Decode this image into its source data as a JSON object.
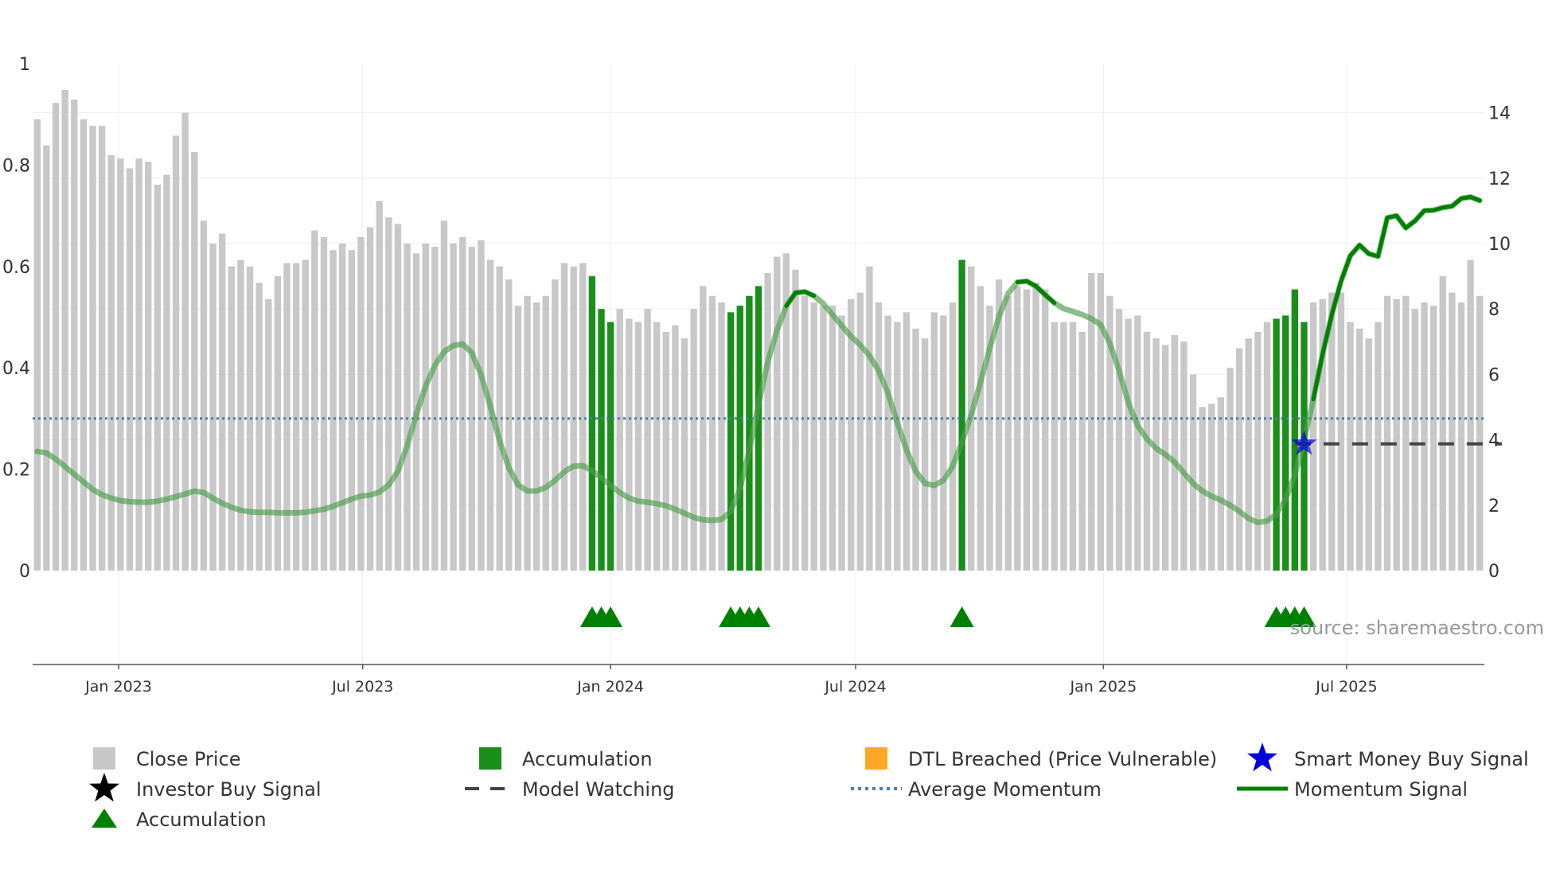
{
  "colors": {
    "close_price": "#c8c8c8",
    "accumulation": "#1a8f1a",
    "dtl_breached": "#ffa726",
    "momentum_main": "#008000",
    "momentum_faded": "#4a9c4a",
    "average_momentum": "#4a7fa6",
    "model_watching": "#444444",
    "smart_money": "#0000dd",
    "investor_buy": "#000000",
    "grid": "#eeeeee",
    "axis": "#555555"
  },
  "chart_data": {
    "type": "bar",
    "title": "",
    "source_label": "source: sharemaestro.com",
    "x_ticks": [
      "Jan 2023",
      "Jul 2023",
      "Jan 2024",
      "Jul 2024",
      "Jan 2025",
      "Jul 2025"
    ],
    "x_tick_positions": [
      8.8,
      35.2,
      62.0,
      88.5,
      115.3,
      141.6
    ],
    "left_axis": {
      "ticks": [
        "1",
        "0.8",
        "0.6",
        "0.4",
        "0.2",
        "0"
      ],
      "tick_values": [
        1,
        0.8,
        0.6,
        0.4,
        0.2,
        0
      ],
      "range": [
        0,
        1
      ]
    },
    "right_axis": {
      "ticks": [
        "14",
        "12",
        "10",
        "8",
        "6",
        "4",
        "2",
        "0"
      ],
      "tick_values": [
        14,
        12,
        10,
        8,
        6,
        4,
        2,
        0
      ],
      "range": [
        0,
        15.5
      ]
    },
    "close_price": [
      13.8,
      13.0,
      14.3,
      14.7,
      14.4,
      13.8,
      13.6,
      13.6,
      12.7,
      12.6,
      12.3,
      12.6,
      12.5,
      11.8,
      12.1,
      13.3,
      14.0,
      12.8,
      10.7,
      10.0,
      10.3,
      9.3,
      9.5,
      9.3,
      8.8,
      8.3,
      9.0,
      9.4,
      9.4,
      9.5,
      10.4,
      10.2,
      9.8,
      10.0,
      9.8,
      10.2,
      10.5,
      11.3,
      10.8,
      10.6,
      10.0,
      9.7,
      10.0,
      9.9,
      10.7,
      10.0,
      10.2,
      9.9,
      10.1,
      9.5,
      9.3,
      8.9,
      8.1,
      8.4,
      8.2,
      8.4,
      8.9,
      9.4,
      9.3,
      9.4,
      9.0,
      8.0,
      7.6,
      8.0,
      7.7,
      7.6,
      8.0,
      7.6,
      7.3,
      7.5,
      7.1,
      8.0,
      8.7,
      8.4,
      8.2,
      7.9,
      8.1,
      8.4,
      8.7,
      9.1,
      9.6,
      9.7,
      9.2,
      8.4,
      8.2,
      8.1,
      8.1,
      7.8,
      8.3,
      8.5,
      9.3,
      8.2,
      7.8,
      7.6,
      7.9,
      7.4,
      7.1,
      7.9,
      7.8,
      8.2,
      9.5,
      9.3,
      8.7,
      8.1,
      8.9,
      8.4,
      8.7,
      8.6,
      8.8,
      8.6,
      7.6,
      7.6,
      7.6,
      7.3,
      9.1,
      9.1,
      8.4,
      8.0,
      7.7,
      7.8,
      7.3,
      7.1,
      6.9,
      7.2,
      7.0,
      6.0,
      5.0,
      5.1,
      5.3,
      6.2,
      6.8,
      7.1,
      7.3,
      7.6,
      7.7,
      7.8,
      8.6,
      7.6,
      8.2,
      8.3,
      8.5,
      8.5,
      7.6,
      7.4,
      7.1,
      7.6,
      8.4,
      8.3,
      8.4,
      8.0,
      8.2,
      8.1,
      9.0,
      8.5,
      8.2,
      9.5,
      8.4
    ],
    "accumulation_indices": [
      60,
      61,
      62,
      75,
      76,
      77,
      78,
      100,
      134,
      135,
      136,
      137
    ],
    "accumulation_markers": [
      60,
      61,
      62,
      75,
      76,
      77,
      78,
      100,
      134,
      135,
      136,
      137
    ],
    "momentum_signal": [
      0.235,
      0.232,
      0.22,
      0.205,
      0.19,
      0.175,
      0.16,
      0.15,
      0.143,
      0.138,
      0.136,
      0.135,
      0.135,
      0.137,
      0.141,
      0.146,
      0.151,
      0.157,
      0.154,
      0.143,
      0.133,
      0.125,
      0.119,
      0.116,
      0.115,
      0.115,
      0.114,
      0.114,
      0.114,
      0.115,
      0.118,
      0.121,
      0.127,
      0.134,
      0.141,
      0.147,
      0.149,
      0.155,
      0.169,
      0.196,
      0.246,
      0.308,
      0.364,
      0.405,
      0.432,
      0.444,
      0.447,
      0.43,
      0.386,
      0.324,
      0.256,
      0.203,
      0.169,
      0.157,
      0.157,
      0.164,
      0.178,
      0.195,
      0.206,
      0.207,
      0.197,
      0.183,
      0.168,
      0.154,
      0.143,
      0.137,
      0.135,
      0.132,
      0.128,
      0.121,
      0.113,
      0.105,
      0.1,
      0.099,
      0.101,
      0.117,
      0.162,
      0.237,
      0.328,
      0.412,
      0.474,
      0.522,
      0.548,
      0.55,
      0.542,
      0.527,
      0.505,
      0.483,
      0.462,
      0.445,
      0.424,
      0.394,
      0.35,
      0.292,
      0.238,
      0.196,
      0.172,
      0.168,
      0.178,
      0.206,
      0.253,
      0.307,
      0.371,
      0.438,
      0.501,
      0.547,
      0.569,
      0.571,
      0.561,
      0.544,
      0.528,
      0.517,
      0.511,
      0.505,
      0.497,
      0.485,
      0.448,
      0.394,
      0.331,
      0.286,
      0.26,
      0.241,
      0.229,
      0.214,
      0.193,
      0.172,
      0.157,
      0.147,
      0.139,
      0.129,
      0.117,
      0.103,
      0.095,
      0.098,
      0.111,
      0.141,
      0.188,
      0.257,
      0.338,
      0.427,
      0.505,
      0.571,
      0.621,
      0.642,
      0.625,
      0.62,
      0.696,
      0.7,
      0.676,
      0.69,
      0.71,
      0.711,
      0.716,
      0.719,
      0.734,
      0.737,
      0.73
    ],
    "momentum_highlight_ranges": [
      [
        81,
        84
      ],
      [
        106,
        110
      ],
      [
        138,
        158
      ]
    ],
    "average_momentum": 0.3,
    "model_watching": {
      "from_index": 136,
      "to_index": 158,
      "value": 0.25
    },
    "smart_money_buy": {
      "index": 137,
      "value": 0.25
    },
    "legend": [
      {
        "label": "Close Price",
        "symbol": "square",
        "color_key": "close_price"
      },
      {
        "label": "Accumulation",
        "symbol": "square",
        "color_key": "accumulation"
      },
      {
        "label": "DTL Breached (Price Vulnerable)",
        "symbol": "square",
        "color_key": "dtl_breached"
      },
      {
        "label": "Smart Money Buy Signal",
        "symbol": "star",
        "color_key": "smart_money"
      },
      {
        "label": "Investor Buy Signal",
        "symbol": "star",
        "color_key": "investor_buy"
      },
      {
        "label": "Model Watching",
        "symbol": "dash",
        "color_key": "model_watching"
      },
      {
        "label": "Average Momentum",
        "symbol": "dot",
        "color_key": "average_momentum"
      },
      {
        "label": "Momentum Signal",
        "symbol": "line",
        "color_key": "momentum_main"
      },
      {
        "label": "Accumulation",
        "symbol": "triangle",
        "color_key": "momentum_main"
      }
    ]
  }
}
